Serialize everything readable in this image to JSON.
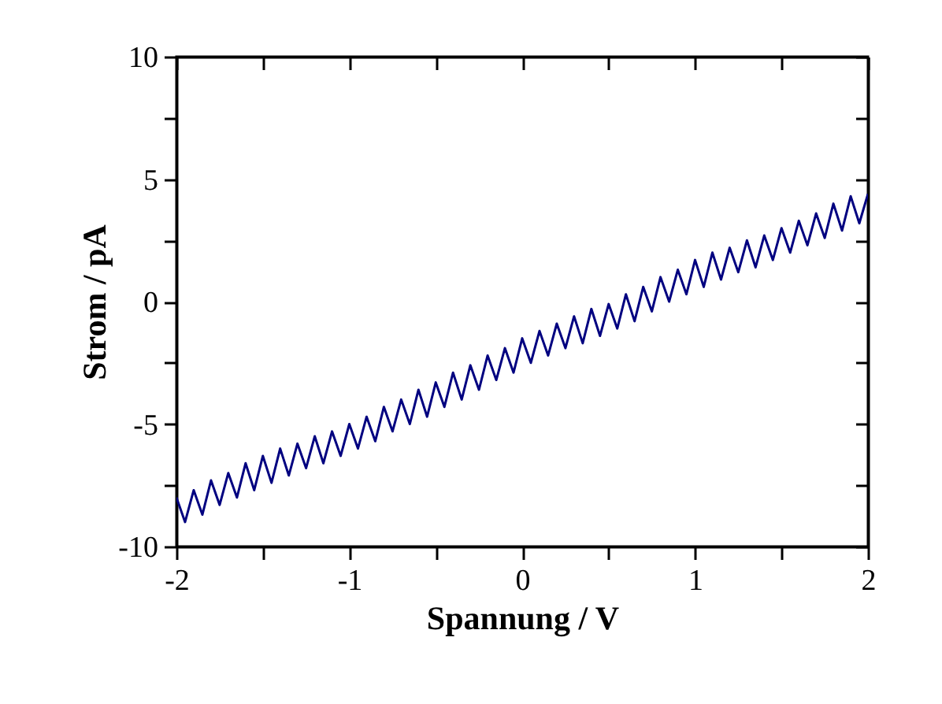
{
  "chart_data": {
    "type": "line",
    "xlabel": "Spannung / V",
    "ylabel": "Strom / pA",
    "x": [
      -2.0,
      -1.95,
      -1.9,
      -1.85,
      -1.8,
      -1.75,
      -1.7,
      -1.65,
      -1.6,
      -1.55,
      -1.5,
      -1.45,
      -1.4,
      -1.35,
      -1.3,
      -1.25,
      -1.2,
      -1.15,
      -1.1,
      -1.05,
      -1.0,
      -0.95,
      -0.9,
      -0.85,
      -0.8,
      -0.75,
      -0.7,
      -0.65,
      -0.6,
      -0.55,
      -0.5,
      -0.45,
      -0.4,
      -0.35,
      -0.3,
      -0.25,
      -0.2,
      -0.15,
      -0.1,
      -0.05,
      0.0,
      0.05,
      0.1,
      0.15,
      0.2,
      0.25,
      0.3,
      0.35,
      0.4,
      0.45,
      0.5,
      0.55,
      0.6,
      0.65,
      0.7,
      0.75,
      0.8,
      0.85,
      0.9,
      0.95,
      1.0,
      1.05,
      1.1,
      1.15,
      1.2,
      1.25,
      1.3,
      1.35,
      1.4,
      1.45,
      1.5,
      1.55,
      1.6,
      1.65,
      1.7,
      1.75,
      1.8,
      1.85,
      1.9,
      1.95,
      2.0
    ],
    "series": [
      {
        "color": "#000080",
        "values": [
          -8.0,
          -9.0,
          -7.7,
          -8.7,
          -7.3,
          -8.3,
          -7.0,
          -8.0,
          -6.6,
          -7.7,
          -6.3,
          -7.4,
          -6.0,
          -7.1,
          -5.8,
          -6.8,
          -5.5,
          -6.6,
          -5.3,
          -6.3,
          -5.0,
          -6.0,
          -4.7,
          -5.7,
          -4.3,
          -5.3,
          -4.0,
          -5.0,
          -3.6,
          -4.7,
          -3.3,
          -4.3,
          -2.9,
          -4.0,
          -2.6,
          -3.6,
          -2.2,
          -3.2,
          -1.9,
          -2.9,
          -1.5,
          -2.5,
          -1.2,
          -2.2,
          -0.9,
          -1.9,
          -0.6,
          -1.7,
          -0.3,
          -1.4,
          -0.1,
          -1.1,
          0.3,
          -0.8,
          0.6,
          -0.4,
          1.0,
          0.0,
          1.3,
          0.3,
          1.7,
          0.6,
          2.0,
          0.9,
          2.2,
          1.2,
          2.5,
          1.4,
          2.7,
          1.7,
          3.0,
          2.0,
          3.3,
          2.3,
          3.6,
          2.6,
          4.0,
          2.9,
          4.3,
          3.2,
          4.4
        ]
      }
    ],
    "xlim": [
      -2,
      2
    ],
    "xticks": [
      -2,
      {
        "value": -1.5,
        "label": null
      },
      -1,
      {
        "value": -0.5,
        "label": null
      },
      0,
      {
        "value": 0.5,
        "label": null
      },
      1,
      {
        "value": 1.5,
        "label": null
      },
      2
    ],
    "ylim": [
      -10,
      10
    ],
    "yticks": [
      -10,
      {
        "value": -7.5,
        "label": null
      },
      -5,
      {
        "value": -2.5,
        "label": null
      },
      0,
      {
        "value": 2.5,
        "label": null
      },
      5,
      {
        "value": 7.5,
        "label": null
      },
      10
    ]
  }
}
